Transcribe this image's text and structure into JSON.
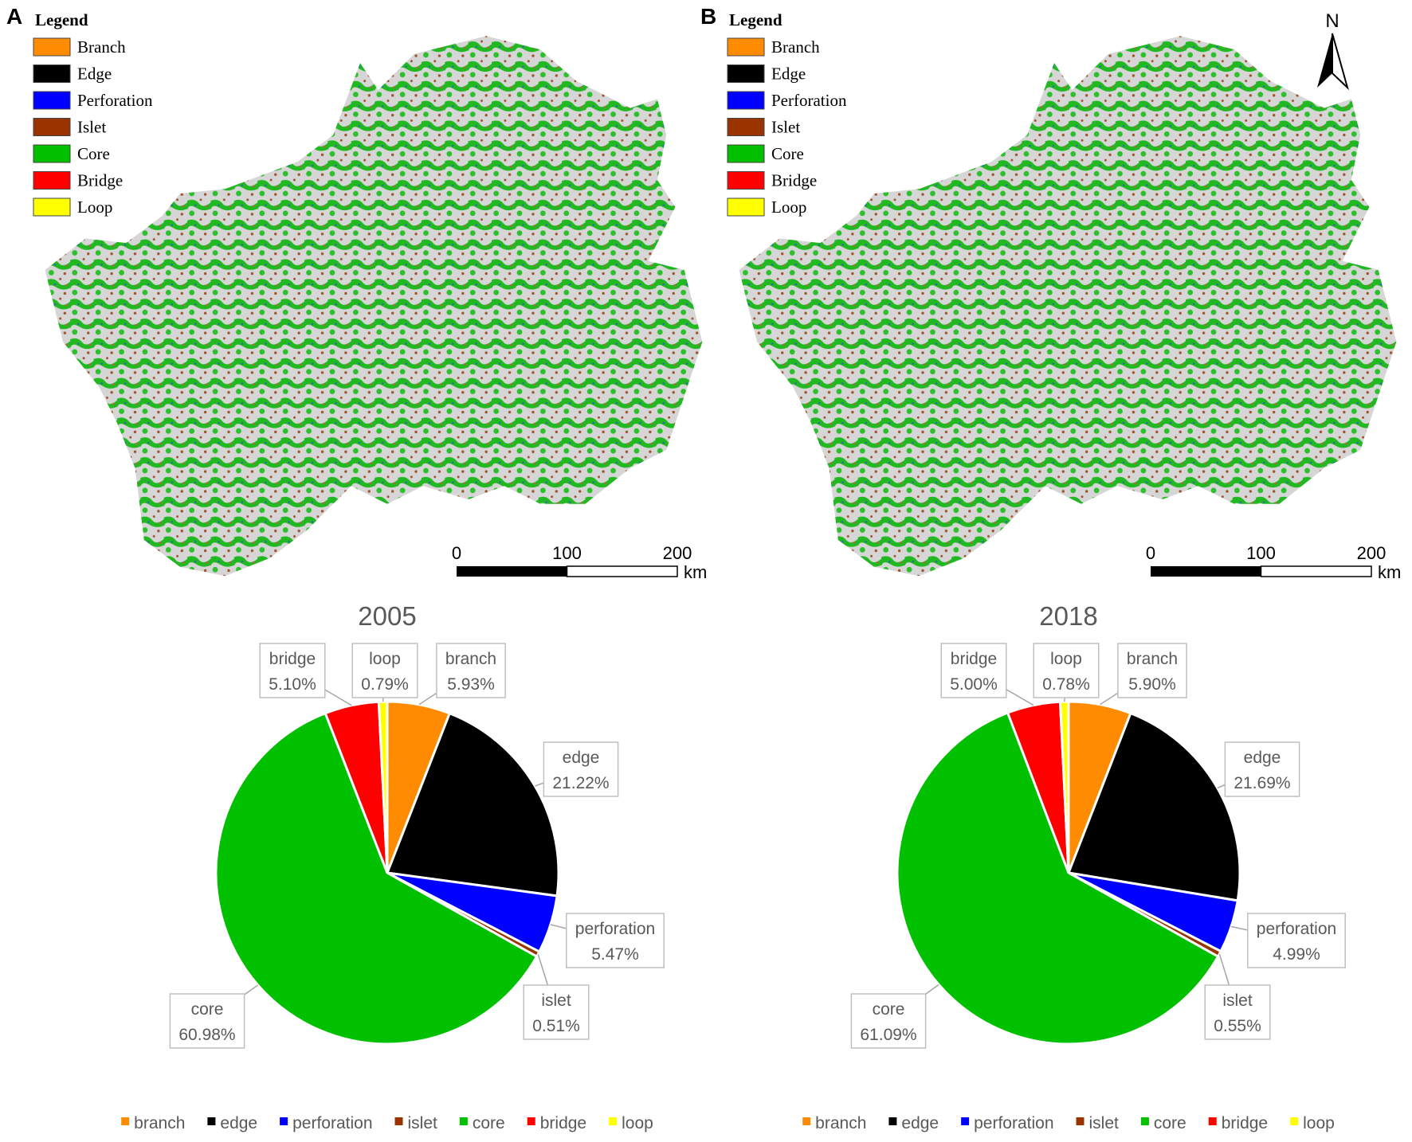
{
  "maps": [
    {
      "panel": "A",
      "legend_title": "Legend",
      "legend": [
        "Branch",
        "Edge",
        "Perforation",
        "Islet",
        "Core",
        "Bridge",
        "Loop"
      ],
      "legend_colors": [
        "#ff8c00",
        "#000000",
        "#0000ff",
        "#993300",
        "#00c000",
        "#ff0000",
        "#ffff00"
      ],
      "scale_ticks": [
        0,
        100,
        200
      ],
      "scale_unit": "km"
    },
    {
      "panel": "B",
      "legend_title": "Legend",
      "legend": [
        "Branch",
        "Edge",
        "Perforation",
        "Islet",
        "Core",
        "Bridge",
        "Loop"
      ],
      "legend_colors": [
        "#ff8c00",
        "#000000",
        "#0000ff",
        "#993300",
        "#00c000",
        "#ff0000",
        "#ffff00"
      ],
      "scale_ticks": [
        0,
        100,
        200
      ],
      "scale_unit": "km",
      "north": "N"
    }
  ],
  "chart_data": [
    {
      "type": "pie",
      "title": "2005",
      "categories": [
        "branch",
        "edge",
        "perforation",
        "islet",
        "core",
        "bridge",
        "loop"
      ],
      "values": [
        5.93,
        21.22,
        5.47,
        0.51,
        60.98,
        5.1,
        0.79
      ],
      "value_labels": [
        "5.93%",
        "21.22%",
        "5.47%",
        "0.51%",
        "60.98%",
        "5.10%",
        "0.79%"
      ],
      "colors": [
        "#ff8c00",
        "#000000",
        "#0000ff",
        "#993300",
        "#00c000",
        "#ff0000",
        "#ffff00"
      ],
      "legend": "bottom"
    },
    {
      "type": "pie",
      "title": "2018",
      "categories": [
        "branch",
        "edge",
        "perforation",
        "islet",
        "core",
        "bridge",
        "loop"
      ],
      "values": [
        5.9,
        21.69,
        4.99,
        0.55,
        61.09,
        5.0,
        0.78
      ],
      "value_labels": [
        "5.90%",
        "21.69%",
        "4.99%",
        "0.55%",
        "61.09%",
        "5.00%",
        "0.78%"
      ],
      "colors": [
        "#ff8c00",
        "#000000",
        "#0000ff",
        "#993300",
        "#00c000",
        "#ff0000",
        "#ffff00"
      ],
      "legend": "bottom"
    }
  ]
}
